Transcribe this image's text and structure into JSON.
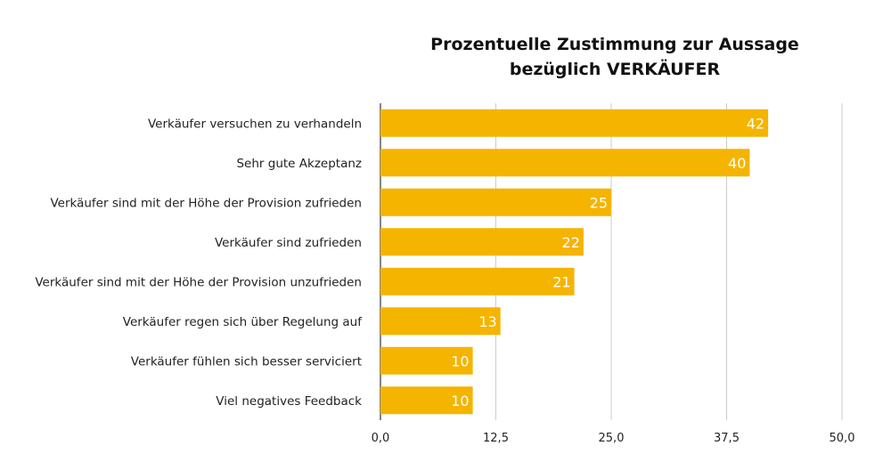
{
  "chart_data": {
    "type": "bar",
    "orientation": "horizontal",
    "title_lines": [
      "Prozentuelle Zustimmung zur Aussage",
      "bezüglich VERKÄUFER"
    ],
    "categories": [
      "Verkäufer versuchen zu verhandeln",
      "Sehr gute Akzeptanz",
      "Verkäufer sind mit der Höhe der Provision zufrieden",
      "Verkäufer sind zufrieden",
      "Verkäufer sind mit der Höhe der Provision unzufrieden",
      "Verkäufer regen sich über Regelung auf",
      "Verkäufer fühlen sich besser serviciert",
      "Viel negatives Feedback"
    ],
    "values": [
      42,
      40,
      25,
      22,
      21,
      13,
      10,
      10
    ],
    "data_labels": [
      "42",
      "40",
      "25",
      "22",
      "21",
      "13",
      "10",
      "10"
    ],
    "xlim": [
      0,
      50
    ],
    "xticks": [
      0,
      12.5,
      25,
      37.5,
      50
    ],
    "xtick_labels": [
      "0,0",
      "12,5",
      "25,0",
      "37,5",
      "50,0"
    ],
    "grid": "vertical",
    "legend": "none",
    "colors": {
      "bar": "#F5B400",
      "grid": "#CCCCCC",
      "axis": "#333333"
    }
  }
}
